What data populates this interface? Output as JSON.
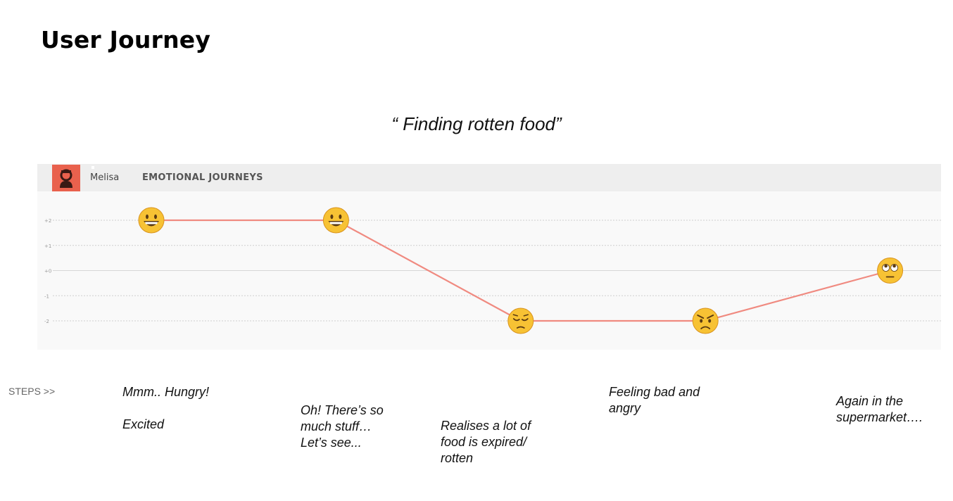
{
  "page": {
    "title": "User Journey",
    "subtitle": "“ Finding rotten food”"
  },
  "panel": {
    "user_name": "Melisa",
    "title": "EMOTIONAL JOURNEYS",
    "avatar_color": "#e9614d"
  },
  "steps_label": "STEPS >>",
  "steps": [
    {
      "text": "Mmm.. Hungry!\n\nExcited"
    },
    {
      "text": "Oh! There’s so\nmuch stuff…\nLet’s see..."
    },
    {
      "text": "Realises a lot of\nfood is expired/\nrotten"
    },
    {
      "text": "Feeling bad and\nangry"
    },
    {
      "text": "Again in the\nsupermarket…."
    }
  ],
  "chart_data": {
    "type": "line",
    "title": "",
    "xlabel": "",
    "ylabel": "",
    "ylim": [
      -2,
      2
    ],
    "y_ticks": [
      "+2",
      "+1",
      "+0",
      "-1",
      "-2"
    ],
    "x": [
      1,
      2,
      3,
      4,
      5
    ],
    "series": [
      {
        "values": [
          2,
          2,
          -2,
          -2,
          0
        ],
        "markers": [
          "grinning-face-icon",
          "grinning-face-icon",
          "pensive-face-icon",
          "angry-face-icon",
          "eye-roll-face-icon"
        ]
      }
    ],
    "line_color": "#f08a80",
    "grid": true
  }
}
